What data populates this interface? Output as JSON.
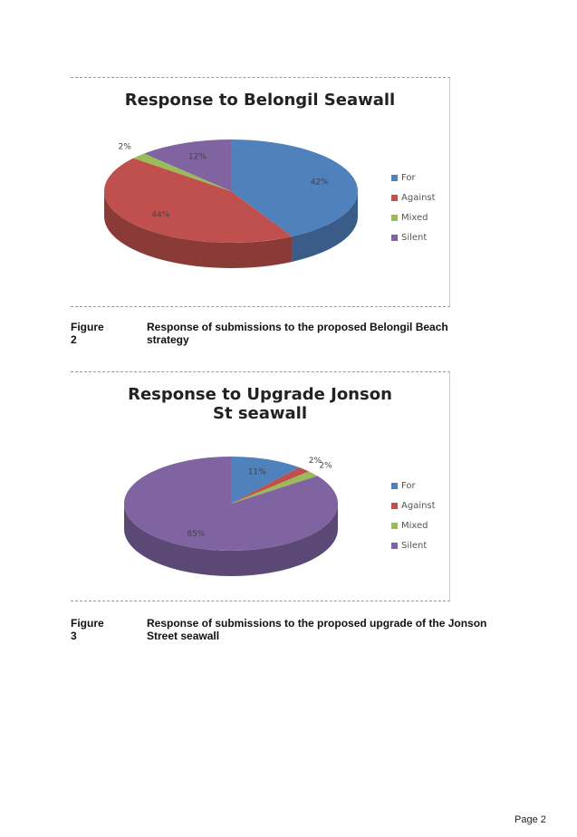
{
  "chart_data": [
    {
      "type": "pie",
      "title": "Response to Belongil Seawall",
      "categories": [
        "For",
        "Against",
        "Mixed",
        "Silent"
      ],
      "values": [
        42,
        44,
        2,
        12
      ],
      "value_labels": [
        "42%",
        "44%",
        "2%",
        "12%"
      ],
      "colors": [
        "#4f81bd",
        "#c0504d",
        "#9bbb59",
        "#8064a2"
      ],
      "legend": "right"
    },
    {
      "type": "pie",
      "title": "Response to Upgrade Jonson St seawall",
      "categories": [
        "For",
        "Against",
        "Mixed",
        "Silent"
      ],
      "values": [
        11,
        2,
        2,
        85
      ],
      "value_labels": [
        "11%",
        "2%",
        "2%",
        "85%"
      ],
      "colors": [
        "#4f81bd",
        "#c0504d",
        "#9bbb59",
        "#8064a2"
      ],
      "legend": "right"
    }
  ],
  "captions": [
    {
      "label": "Figure 2",
      "text": "Response of submissions to the proposed Belongil Beach strategy"
    },
    {
      "label": "Figure 3",
      "text": "Response of submissions to the proposed upgrade of the Jonson Street seawall"
    }
  ],
  "footer": "Page 2"
}
